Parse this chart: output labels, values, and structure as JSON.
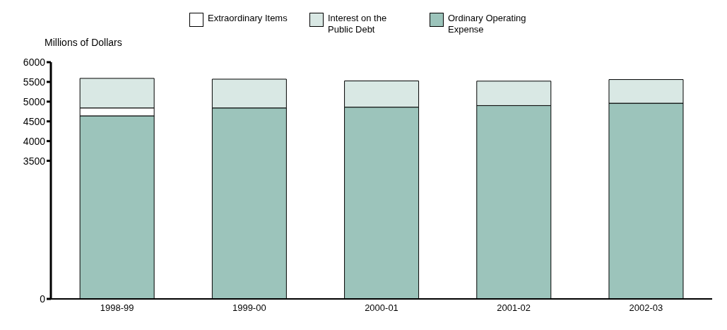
{
  "chart_data": {
    "type": "bar",
    "ylabel": "Millions of Dollars",
    "categories": [
      "1998-99",
      "1999-00",
      "2000-01",
      "2001-02",
      "2002-03"
    ],
    "stacked": true,
    "series": [
      {
        "name": "Ordinary Operating Expense",
        "color": "#9cc4bb",
        "values": [
          4640,
          4840,
          4860,
          4900,
          4960
        ]
      },
      {
        "name": "Extraordinary Items",
        "color": "#ffffff",
        "values": [
          200,
          0,
          0,
          0,
          0
        ]
      },
      {
        "name": "Interest on the Public Debt",
        "color": "#d9e8e4",
        "values": [
          750,
          730,
          665,
          620,
          600
        ]
      }
    ],
    "ylim": [
      0,
      6000
    ],
    "yticks": [
      0,
      3500,
      4000,
      4500,
      5000,
      5500,
      6000
    ],
    "grid": false,
    "legend": "top"
  }
}
